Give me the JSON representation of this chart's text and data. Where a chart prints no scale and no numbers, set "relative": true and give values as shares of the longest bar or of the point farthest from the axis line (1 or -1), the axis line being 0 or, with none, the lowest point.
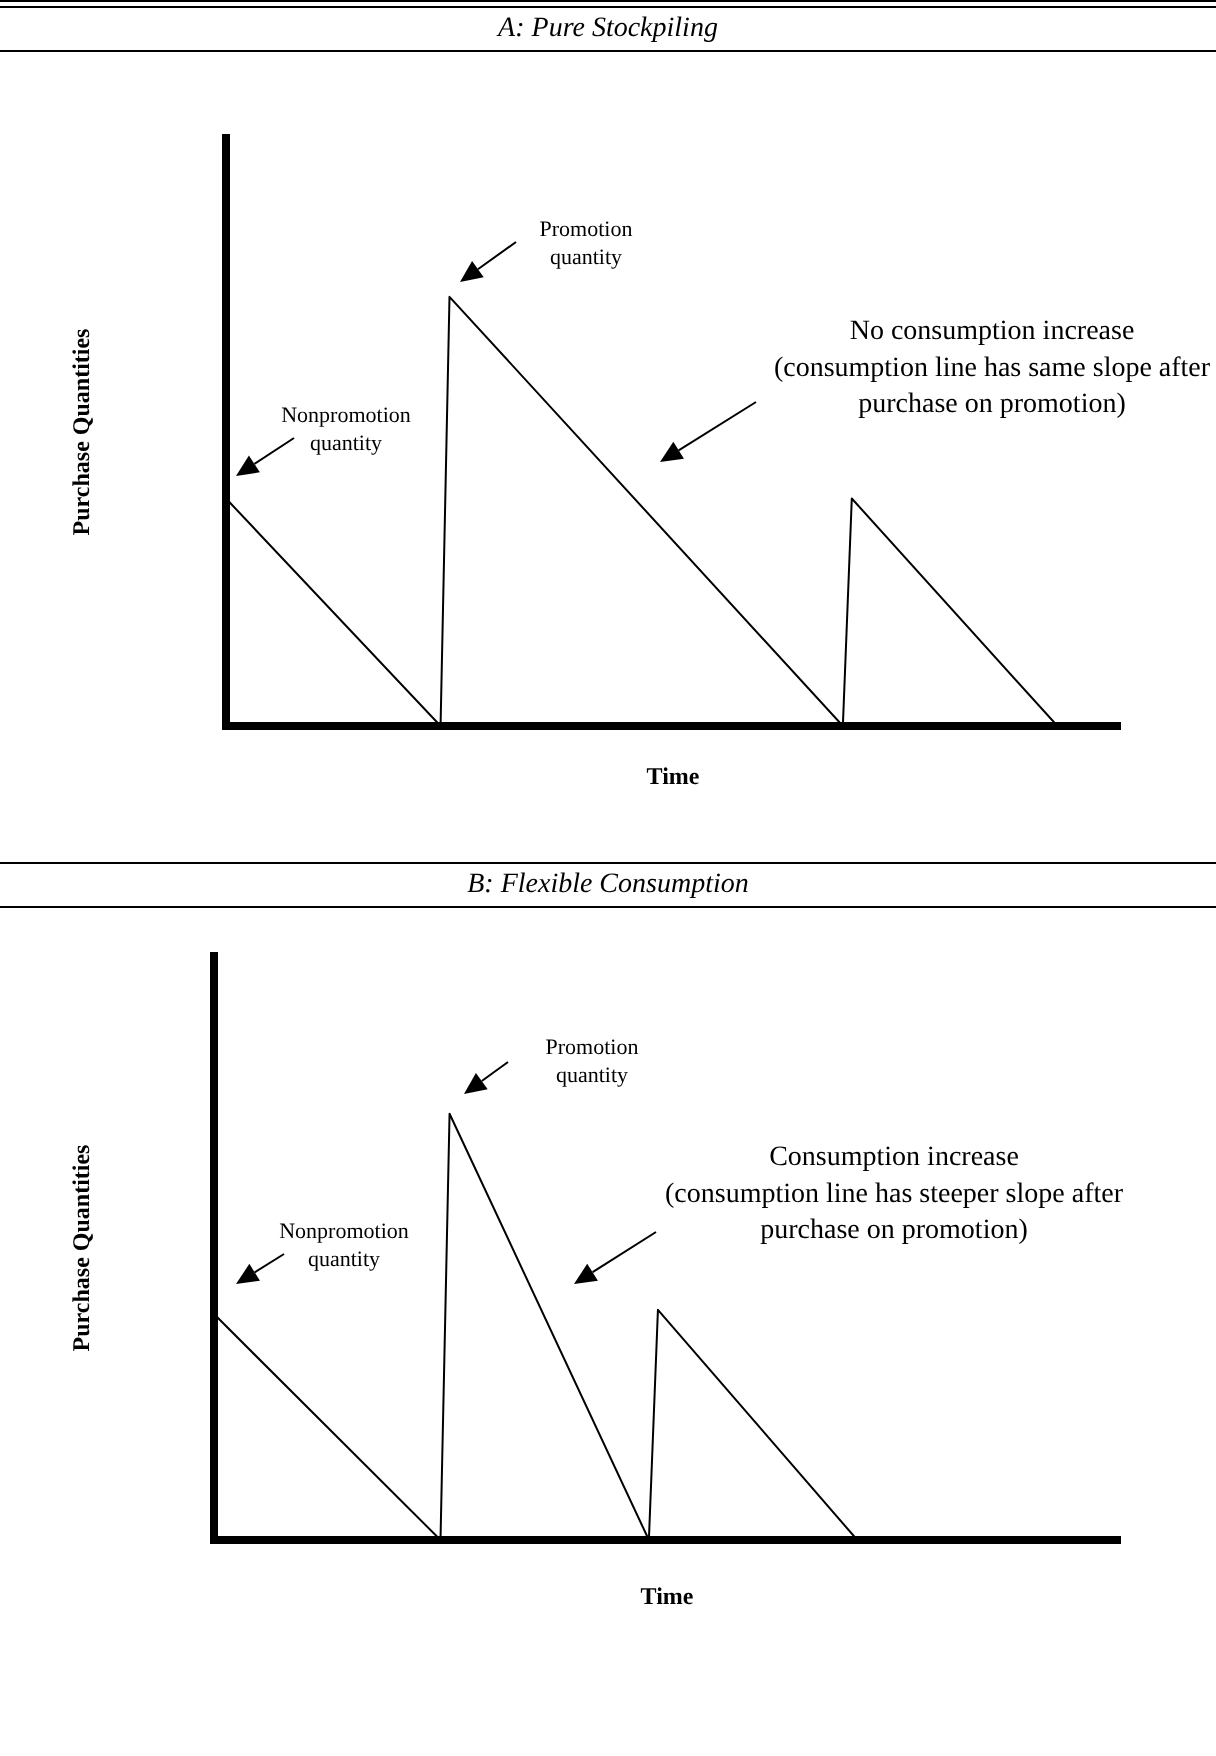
{
  "chart_data": [
    {
      "type": "line",
      "title": "A: Pure Stockpiling",
      "xlabel": "Time",
      "ylabel": "Purchase Quantities",
      "relative": true,
      "tick_labels": false,
      "marker": "none",
      "categories": [
        null,
        null,
        null,
        null,
        null,
        null,
        null,
        null,
        null,
        null,
        null,
        null,
        null,
        null,
        null,
        null,
        null,
        null,
        null,
        null,
        null,
        null,
        null,
        null,
        null,
        null,
        null,
        null,
        null,
        null,
        null,
        null,
        null,
        null,
        null,
        null,
        null,
        null,
        null,
        null,
        null,
        null,
        null,
        null,
        null,
        null,
        null,
        null,
        null,
        null,
        null,
        null,
        null,
        null,
        null,
        null,
        null,
        null,
        null,
        null,
        null,
        null,
        null,
        null,
        null,
        null,
        null,
        null,
        null,
        null,
        null,
        null,
        null,
        null,
        null,
        null,
        null,
        null,
        null,
        null,
        null,
        null,
        null,
        null,
        null,
        null,
        null,
        null,
        null,
        null,
        null,
        null,
        null,
        null,
        null,
        null,
        null,
        null,
        null,
        null,
        null
      ],
      "series": [
        {
          "color": "#000000",
          "values": [
            0.53,
            null,
            null,
            null,
            null,
            null,
            null,
            null,
            null,
            null,
            null,
            null,
            null,
            null,
            null,
            null,
            null,
            null,
            null,
            null,
            null,
            null,
            null,
            null,
            0,
            1,
            null,
            null,
            null,
            null,
            null,
            null,
            null,
            null,
            null,
            null,
            null,
            null,
            null,
            null,
            null,
            null,
            null,
            null,
            null,
            null,
            null,
            null,
            null,
            null,
            null,
            null,
            null,
            null,
            null,
            null,
            null,
            null,
            null,
            null,
            null,
            null,
            null,
            null,
            null,
            null,
            null,
            null,
            null,
            0,
            0.53,
            null,
            null,
            null,
            null,
            null,
            null,
            null,
            null,
            null,
            null,
            null,
            null,
            null,
            null,
            null,
            null,
            null,
            null,
            null,
            null,
            null,
            null,
            0,
            null,
            null,
            null,
            null,
            null,
            null,
            null
          ]
        }
      ],
      "annotations": [
        "Nonpromotion quantity",
        "Promotion quantity",
        "No consumption increase (consumption line has same slope after purchase on promotion)"
      ]
    },
    {
      "type": "line",
      "title": "B: Flexible Consumption",
      "xlabel": "Time",
      "ylabel": "Purchase Quantities",
      "relative": true,
      "tick_labels": false,
      "marker": "none",
      "categories": [
        null,
        null,
        null,
        null,
        null,
        null,
        null,
        null,
        null,
        null,
        null,
        null,
        null,
        null,
        null,
        null,
        null,
        null,
        null,
        null,
        null,
        null,
        null,
        null,
        null,
        null,
        null,
        null,
        null,
        null,
        null,
        null,
        null,
        null,
        null,
        null,
        null,
        null,
        null,
        null,
        null,
        null,
        null,
        null,
        null,
        null,
        null,
        null,
        null,
        null,
        null,
        null,
        null,
        null,
        null,
        null,
        null,
        null,
        null,
        null,
        null,
        null,
        null,
        null,
        null,
        null,
        null,
        null,
        null,
        null,
        null,
        null,
        null,
        null,
        null,
        null,
        null,
        null,
        null,
        null,
        null,
        null,
        null,
        null,
        null,
        null,
        null,
        null,
        null,
        null,
        null,
        null,
        null,
        null,
        null,
        null,
        null,
        null,
        null,
        null,
        null
      ],
      "series": [
        {
          "color": "#000000",
          "values": [
            0.53,
            null,
            null,
            null,
            null,
            null,
            null,
            null,
            null,
            null,
            null,
            null,
            null,
            null,
            null,
            null,
            null,
            null,
            null,
            null,
            null,
            null,
            null,
            null,
            null,
            0,
            1,
            null,
            null,
            null,
            null,
            null,
            null,
            null,
            null,
            null,
            null,
            null,
            null,
            null,
            null,
            null,
            null,
            null,
            null,
            null,
            null,
            null,
            0,
            0.54,
            null,
            null,
            null,
            null,
            null,
            null,
            null,
            null,
            null,
            null,
            null,
            null,
            null,
            null,
            null,
            null,
            null,
            null,
            null,
            null,
            null,
            0,
            null,
            null,
            null,
            null,
            null,
            null,
            null,
            null,
            null,
            null,
            null,
            null,
            null,
            null,
            null,
            null,
            null,
            null,
            null,
            null,
            null,
            null,
            null,
            null,
            null,
            null,
            null,
            null,
            null
          ]
        }
      ],
      "annotations": [
        "Nonpromotion quantity",
        "Promotion quantity",
        "Consumption increase (consumption line has steeper slope after purchase on promotion)"
      ]
    }
  ]
}
